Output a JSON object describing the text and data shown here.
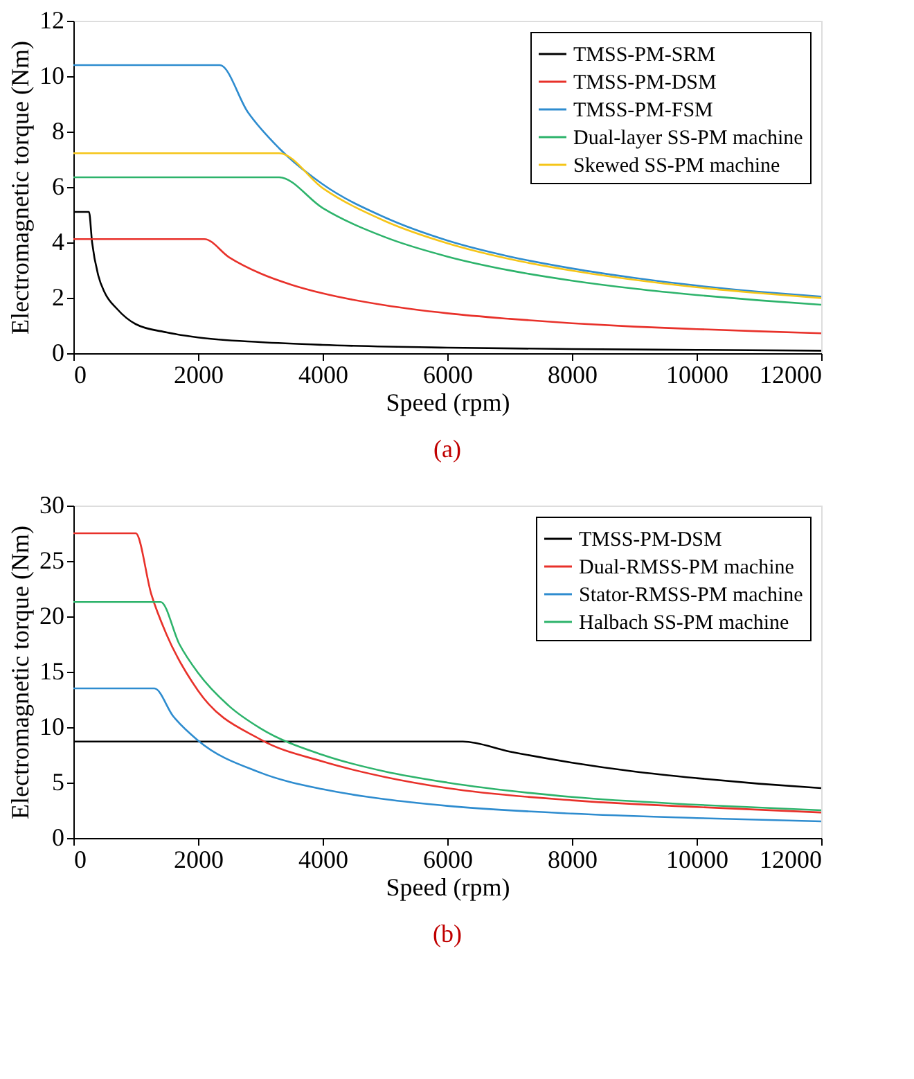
{
  "chart_data": [
    {
      "type": "line",
      "title": "(a)",
      "xlabel": "Speed (rpm)",
      "ylabel": "Electromagnetic torque (Nm)",
      "xlim": [
        0,
        12000
      ],
      "xticks": [
        0,
        2000,
        4000,
        6000,
        8000,
        10000,
        12000
      ],
      "ylim": [
        0,
        12
      ],
      "yticks": [
        0,
        2,
        4,
        6,
        8,
        10,
        12
      ],
      "grid": false,
      "legend": "top right",
      "series": [
        {
          "name": "TMSS-PM-SRM",
          "color": "#000000",
          "x": [
            0,
            250,
            300,
            400,
            500,
            700,
            1000,
            1500,
            2000,
            3000,
            4000,
            6000,
            8000,
            10000,
            12000
          ],
          "values": [
            5.1,
            5.1,
            4.0,
            2.8,
            2.2,
            1.6,
            1.05,
            0.75,
            0.57,
            0.4,
            0.3,
            0.2,
            0.15,
            0.12,
            0.09
          ]
        },
        {
          "name": "TMSS-PM-DSM",
          "color": "#e8312a",
          "x": [
            0,
            2100,
            2500,
            3000,
            3500,
            4000,
            5000,
            6000,
            7000,
            8000,
            9000,
            10000,
            11000,
            12000
          ],
          "values": [
            4.12,
            4.12,
            3.46,
            2.88,
            2.47,
            2.16,
            1.73,
            1.44,
            1.24,
            1.08,
            0.96,
            0.87,
            0.79,
            0.72
          ]
        },
        {
          "name": "TMSS-PM-FSM",
          "color": "#2e8ccf",
          "x": [
            0,
            2350,
            2800,
            3300,
            4000,
            5000,
            6000,
            7000,
            8000,
            9000,
            10000,
            11000,
            12000
          ],
          "values": [
            10.4,
            10.4,
            8.7,
            7.4,
            6.1,
            4.9,
            4.07,
            3.49,
            3.06,
            2.72,
            2.44,
            2.22,
            2.04
          ]
        },
        {
          "name": "Dual-layer SS-PM machine",
          "color": "#2db36b",
          "x": [
            0,
            3300,
            4000,
            5000,
            6000,
            7000,
            8000,
            9000,
            10000,
            11000,
            12000
          ],
          "values": [
            6.35,
            6.35,
            5.24,
            4.19,
            3.49,
            2.99,
            2.62,
            2.33,
            2.1,
            1.91,
            1.75
          ]
        },
        {
          "name": "Skewed SS-PM machine",
          "color": "#f5c518",
          "x": [
            0,
            3300,
            4000,
            5000,
            6000,
            7000,
            8000,
            9000,
            10000,
            11000,
            12000
          ],
          "values": [
            7.22,
            7.22,
            5.96,
            4.77,
            3.97,
            3.4,
            2.98,
            2.65,
            2.38,
            2.17,
            1.99
          ]
        }
      ]
    },
    {
      "type": "line",
      "title": "(b)",
      "xlabel": "Speed (rpm)",
      "ylabel": "Electromagnetic torque (Nm)",
      "xlim": [
        0,
        12000
      ],
      "xticks": [
        0,
        2000,
        4000,
        6000,
        8000,
        10000,
        12000
      ],
      "ylim": [
        0,
        30
      ],
      "yticks": [
        0,
        5,
        10,
        15,
        20,
        25,
        30
      ],
      "grid": false,
      "legend": "top right",
      "series": [
        {
          "name": "TMSS-PM-DSM",
          "color": "#000000",
          "x": [
            0,
            6250,
            7000,
            8000,
            9000,
            10000,
            11000,
            12000
          ],
          "values": [
            8.7,
            8.7,
            7.8,
            6.8,
            6.0,
            5.4,
            4.9,
            4.5
          ]
        },
        {
          "name": "Dual-RMSS-PM machine",
          "color": "#e8312a",
          "x": [
            0,
            1000,
            1250,
            1500,
            2000,
            3000,
            4000,
            5000,
            6000,
            8000,
            10000,
            12000
          ],
          "values": [
            27.5,
            27.5,
            22,
            18.3,
            13.3,
            8.9,
            6.9,
            5.5,
            4.5,
            3.4,
            2.8,
            2.3
          ]
        },
        {
          "name": "Stator-RMSS-PM machine",
          "color": "#2e8ccf",
          "x": [
            0,
            1300,
            1600,
            2000,
            3000,
            4000,
            5000,
            6000,
            8000,
            10000,
            12000
          ],
          "values": [
            13.5,
            13.5,
            11.0,
            8.8,
            5.9,
            4.4,
            3.5,
            2.9,
            2.2,
            1.8,
            1.5
          ]
        },
        {
          "name": "Halbach SS-PM machine",
          "color": "#2db36b",
          "x": [
            0,
            1400,
            1700,
            2000,
            2500,
            3000,
            4000,
            5000,
            6000,
            8000,
            10000,
            12000
          ],
          "values": [
            21.3,
            21.3,
            17.5,
            14.9,
            11.9,
            9.9,
            7.5,
            6.0,
            5.0,
            3.7,
            3.0,
            2.5
          ]
        }
      ]
    }
  ]
}
